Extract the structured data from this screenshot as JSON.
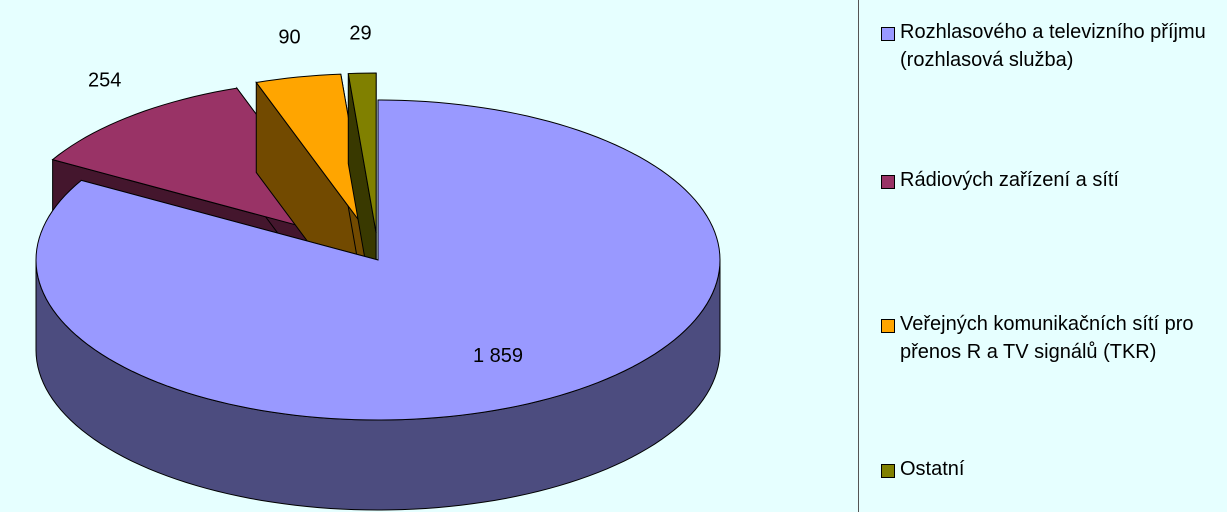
{
  "chart_data": {
    "type": "pie",
    "categories": [
      "Rozhlasového a televizního příjmu (rozhlasová služba)",
      "Rádiových zařízení a sítí",
      "Veřejných komunikačních sítí pro přenos R a TV signálů (TKR)",
      "Ostatní"
    ],
    "values": [
      1859,
      254,
      90,
      29
    ],
    "value_labels": [
      "1 859",
      "254",
      "90",
      "29"
    ],
    "colors": [
      "#9999ff",
      "#993366",
      "#ffa500",
      "#808000"
    ],
    "legend": "right"
  }
}
